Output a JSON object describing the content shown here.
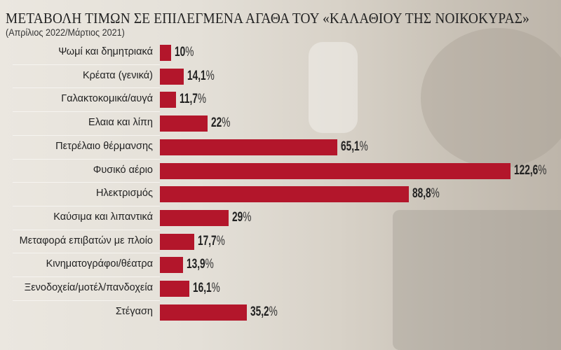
{
  "chart_data": {
    "type": "bar",
    "orientation": "horizontal",
    "title": "ΜΕΤΑΒΟΛΗ ΤΙΜΩΝ ΣΕ ΕΠΙΛΕΓΜΕΝΑ ΑΓΑΘΑ ΤΟΥ «ΚΑΛΑΘΙΟΥ ΤΗΣ ΝΟΙΚΟΚΥΡΑΣ»",
    "subtitle": "(Απρίλιος 2022/Μάρτιος 2021)",
    "categories": [
      "Ψωμί και δημητριακά",
      "Κρέατα (γενικά)",
      "Γαλακτοκομικά/αυγά",
      "Ελαια και λίπη",
      "Πετρέλαιο θέρμανσης",
      "Φυσικό αέριο",
      "Ηλεκτρισμός",
      "Καύσιμα και λιπαντικά",
      "Μεταφορά επιβατών με πλοίο",
      "Κινηματογράφοι/θέατρα",
      "Ξενοδοχεία/μοτέλ/πανδοχεία",
      "Στέγαση"
    ],
    "values": [
      10,
      14.1,
      11.7,
      22,
      65.1,
      122.6,
      88.8,
      29,
      17.7,
      13.9,
      16.1,
      35.2
    ],
    "value_labels": [
      "10",
      "14,1",
      "11,7",
      "22",
      "65,1",
      "122,6",
      "88,8",
      "29",
      "17,7",
      "13,9",
      "16,1",
      "35,2"
    ],
    "unit": "%",
    "xlabel": "",
    "ylabel": "",
    "grid": false,
    "bar_color": "#b3162b"
  }
}
